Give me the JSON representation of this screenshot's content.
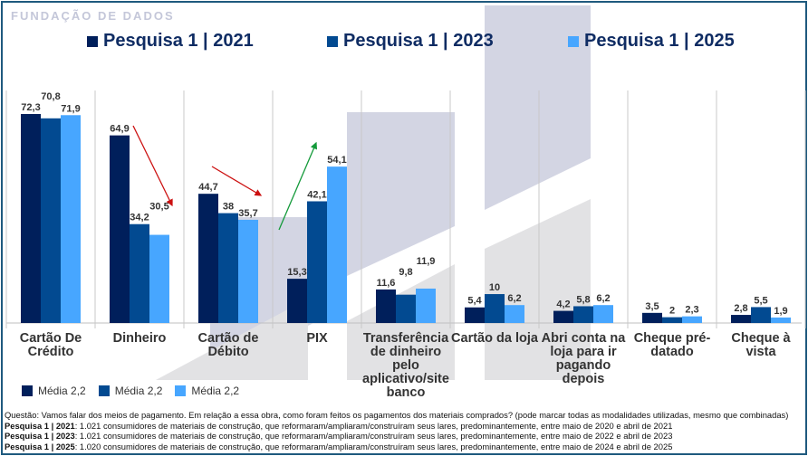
{
  "chart_data": {
    "type": "bar",
    "title": "",
    "xlabel": "",
    "ylabel": "",
    "ylim": [
      0,
      80
    ],
    "grid": false,
    "legend_placement": "top",
    "categories": [
      "Cartão De Crédito",
      "Dinheiro",
      "Cartão de Débito",
      "PIX",
      "Transferência de dinheiro pelo aplicativo/site banco",
      "Cartão da loja",
      "Abri conta na loja para ir pagando depois",
      "Cheque pré-datado",
      "Cheque à vista"
    ],
    "series": [
      {
        "name": "Pesquisa 1 | 2021",
        "color": "#001f5b",
        "values": [
          72.3,
          64.9,
          44.7,
          15.3,
          11.6,
          5.4,
          4.2,
          3.5,
          2.8
        ]
      },
      {
        "name": "Pesquisa 1 | 2023",
        "color": "#024a91",
        "values": [
          70.8,
          34.2,
          38,
          42.1,
          9.8,
          10,
          5.8,
          2,
          5.5
        ]
      },
      {
        "name": "Pesquisa 1 | 2025",
        "color": "#47a6ff",
        "values": [
          71.9,
          30.5,
          35.7,
          54.1,
          11.9,
          6.2,
          6.2,
          2.3,
          1.9
        ]
      }
    ],
    "data_labels": [
      [
        "72,3",
        "64,9",
        "44,7",
        "15,3",
        "11,6",
        "5,4",
        "4,2",
        "3,5",
        "2,8"
      ],
      [
        "70,8",
        "34,2",
        "38",
        "42,1",
        "9,8",
        "10",
        "5,8",
        "2",
        "5,5"
      ],
      [
        "71,9",
        "30,5",
        "35,7",
        "54,1",
        "11,9",
        "6,2",
        "6,2",
        "2,3",
        "1,9"
      ]
    ],
    "annotations": [
      {
        "type": "trend-arrow",
        "category": "Dinheiro",
        "direction": "down",
        "color": "#cc1111"
      },
      {
        "type": "trend-arrow",
        "category": "Cartão de Débito",
        "direction": "down",
        "color": "#cc1111"
      },
      {
        "type": "trend-arrow",
        "category": "PIX",
        "direction": "up",
        "color": "#149a3a"
      }
    ]
  },
  "category_label_lines": [
    [
      "Cartão De",
      "Crédito"
    ],
    [
      "Dinheiro"
    ],
    [
      "Cartão de",
      "Débito"
    ],
    [
      "PIX"
    ],
    [
      "Transferência",
      "de dinheiro",
      "pelo",
      "aplicativo/site",
      "banco"
    ],
    [
      "Cartão da loja"
    ],
    [
      "Abri conta na",
      "loja para ir",
      "pagando",
      "depois"
    ],
    [
      "Cheque pré-",
      "datado"
    ],
    [
      "Cheque à vista"
    ]
  ],
  "legend_top": [
    {
      "label": "Pesquisa 1 | 2021",
      "color": "#001f5b"
    },
    {
      "label": "Pesquisa 1 | 2023",
      "color": "#024a91"
    },
    {
      "label": "Pesquisa 1 | 2025",
      "color": "#47a6ff"
    }
  ],
  "legend_bottom": [
    {
      "label": "Média 2,2",
      "color": "#001f5b"
    },
    {
      "label": "Média 2,2",
      "color": "#024a91"
    },
    {
      "label": "Média 2,2",
      "color": "#47a6ff"
    }
  ],
  "watermark_text": "FUNDAÇÃO DE DADOS",
  "notes": {
    "question": "Questão: Vamos falar dos meios de pagamento. Em relação a essa obra, como foram feitos os pagamentos dos materiais comprados? (pode marcar todas as modalidades utilizadas, mesmo que combinadas)",
    "rows": [
      {
        "bold": "Pesquisa 1 | 2021",
        "text": ": 1.021 consumidores de materiais de construção, que reformaram/ampliaram/construíram seus lares, predominantemente, entre maio de 2020 e abril de 2021"
      },
      {
        "bold": "Pesquisa 1 | 2023",
        "text": ": 1.021 consumidores de materiais de construção, que reformaram/ampliaram/construíram seus lares, predominantemente, entre maio de 2022 e abril de 2023"
      },
      {
        "bold": "Pesquisa 1 | 2025",
        "text": ": 1.020 consumidores de materiais de construção, que reformaram/ampliaram/construíram seus lares, predominantemente, entre maio de 2024 e abril de 2025"
      }
    ]
  }
}
